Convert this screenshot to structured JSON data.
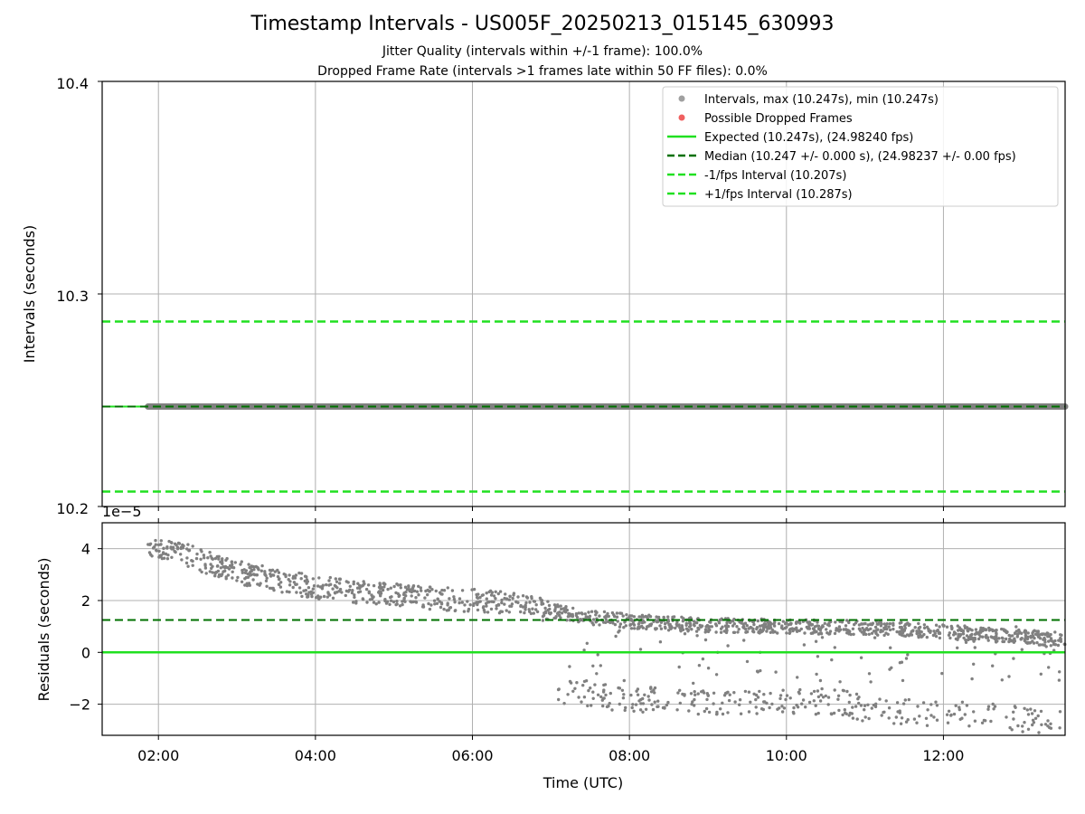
{
  "title": "Timestamp Intervals - US005F_20250213_015145_630993",
  "subtitle_lines": [
    "Jitter Quality (intervals within +/-1 frame): 100.0%",
    "Dropped Frame Rate (intervals >1 frames late within 50 FF files): 0.0%"
  ],
  "colors": {
    "points": "#808080",
    "dropped": "#f06060",
    "expected": "#20e020",
    "median": "#007000",
    "interval": "#20e020",
    "grid": "#b0b0b0"
  },
  "chart_data": [
    {
      "type": "scatter",
      "ylabel": "Intervals (seconds)",
      "ylim": [
        10.2,
        10.4
      ],
      "y_ticks": [
        "10.2",
        "10.3",
        "10.4"
      ],
      "x_ticks": [
        "02:00",
        "04:00",
        "06:00",
        "08:00",
        "10:00",
        "12:00"
      ],
      "xlim": [
        "01:17",
        "13:33"
      ],
      "grid": true,
      "legend_position": "top-right",
      "legend": [
        {
          "label": "Intervals, max (10.247s), min (10.247s)",
          "kind": "marker",
          "color": "#a0a0a0"
        },
        {
          "label": "Possible Dropped Frames",
          "kind": "marker",
          "color": "#f06060"
        },
        {
          "label": "Expected (10.247s), (24.98240 fps)",
          "kind": "solid",
          "color": "#20e020"
        },
        {
          "label": "Median (10.247 +/- 0.000 s), (24.98237 +/- 0.00 fps)",
          "kind": "dashed",
          "color": "#007000"
        },
        {
          "label": "-1/fps Interval (10.207s)",
          "kind": "dashed",
          "color": "#20e020"
        },
        {
          "label": "+1/fps Interval (10.287s)",
          "kind": "dashed",
          "color": "#20e020"
        }
      ],
      "series": [
        {
          "name": "Intervals",
          "x_range": [
            "01:52",
            "13:33"
          ],
          "y_value": 10.247
        },
        {
          "name": "Expected",
          "y_value": 10.247
        },
        {
          "name": "Median",
          "y_value": 10.247
        },
        {
          "name": "-1/fps Interval",
          "y_value": 10.207
        },
        {
          "name": "+1/fps Interval",
          "y_value": 10.287
        }
      ]
    },
    {
      "type": "scatter",
      "ylabel": "Residuals (seconds)",
      "xlabel": "Time (UTC)",
      "y_scale_label": "1e−5",
      "ylim": [
        -3.2,
        5
      ],
      "y_ticks": [
        "−2",
        "0",
        "2",
        "4"
      ],
      "x_ticks": [
        "02:00",
        "04:00",
        "06:00",
        "08:00",
        "10:00",
        "12:00"
      ],
      "xlim": [
        "01:17",
        "13:33"
      ],
      "grid": true,
      "reference_lines": [
        {
          "name": "Expected",
          "y": 0
        },
        {
          "name": "Median",
          "y": 1.25
        }
      ],
      "series": [
        {
          "name": "Residuals (upper band)",
          "points": [
            [
              "01:52",
              4.2
            ],
            [
              "02:30",
              3.6
            ],
            [
              "03:00",
              3.1
            ],
            [
              "03:30",
              2.8
            ],
            [
              "04:00",
              2.5
            ],
            [
              "05:00",
              2.2
            ],
            [
              "06:00",
              2.0
            ],
            [
              "06:30",
              1.9
            ],
            [
              "07:00",
              1.6
            ],
            [
              "07:30",
              1.35
            ],
            [
              "08:00",
              1.2
            ],
            [
              "09:00",
              1.05
            ],
            [
              "10:00",
              1.0
            ],
            [
              "11:00",
              0.95
            ],
            [
              "12:00",
              0.8
            ],
            [
              "12:30",
              0.7
            ],
            [
              "13:00",
              0.6
            ],
            [
              "13:33",
              0.5
            ]
          ]
        },
        {
          "name": "Residuals (lower scatter)",
          "points": [
            [
              "07:05",
              -1.6
            ],
            [
              "07:20",
              -1.5
            ],
            [
              "07:40",
              -1.7
            ],
            [
              "08:00",
              -1.9
            ],
            [
              "08:30",
              -1.8
            ],
            [
              "09:00",
              -2.0
            ],
            [
              "09:15",
              -1.9
            ],
            [
              "10:40",
              -1.9
            ],
            [
              "11:10",
              -2.3
            ],
            [
              "11:40",
              -2.3
            ],
            [
              "12:10",
              -2.4
            ],
            [
              "12:40",
              -2.5
            ],
            [
              "13:10",
              -2.6
            ],
            [
              "13:30",
              -2.6
            ]
          ]
        }
      ]
    }
  ]
}
